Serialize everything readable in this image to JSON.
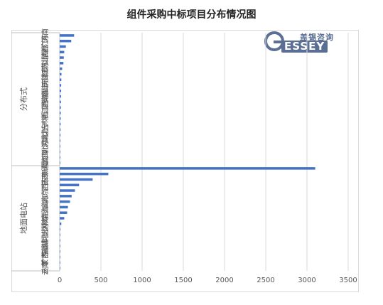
{
  "chart_data": {
    "type": "bar",
    "orientation": "horizontal",
    "title": "组件采购中标项目分布情况图",
    "xlim": [
      0,
      3500
    ],
    "xticks": [
      "0",
      "500",
      "1000",
      "1500",
      "2000",
      "2500",
      "3000",
      "3500"
    ],
    "grid": true,
    "legend": "none",
    "bar_color": "#4472c4",
    "groups": [
      {
        "name": "分布式",
        "categories": [
          "河南",
          "广东",
          "浙江",
          "陕西",
          "山西",
          "河北",
          "江苏",
          "甘肃",
          "天津",
          "山东",
          "福建",
          "安徽",
          "湖南",
          "江西",
          "浙江",
          "广西",
          "吉林",
          "辽宁",
          "湖北",
          "河北",
          "北京",
          "四川",
          "上海",
          "海南"
        ],
        "values": [
          175,
          140,
          75,
          55,
          50,
          45,
          30,
          22,
          20,
          18,
          17,
          16,
          15,
          14,
          13,
          12,
          11,
          10,
          9,
          8,
          7,
          6,
          5,
          4
        ]
      },
      {
        "name": "地面电站",
        "categories": [
          "新疆",
          "四川",
          "甘肃",
          "江苏",
          "广西",
          "北京",
          "山东",
          "上海",
          "青海",
          "陕西",
          "河南",
          "吉林",
          "河北",
          "湖北",
          "福建",
          "西藏",
          "广东",
          "内蒙古",
          "云南"
        ],
        "values": [
          3100,
          590,
          400,
          235,
          185,
          145,
          125,
          100,
          90,
          55,
          20,
          8,
          6,
          5,
          4,
          4,
          3,
          3,
          2
        ]
      }
    ]
  },
  "logo": {
    "cn_text": "盖锡咨询",
    "en_text": "ESSEY"
  }
}
